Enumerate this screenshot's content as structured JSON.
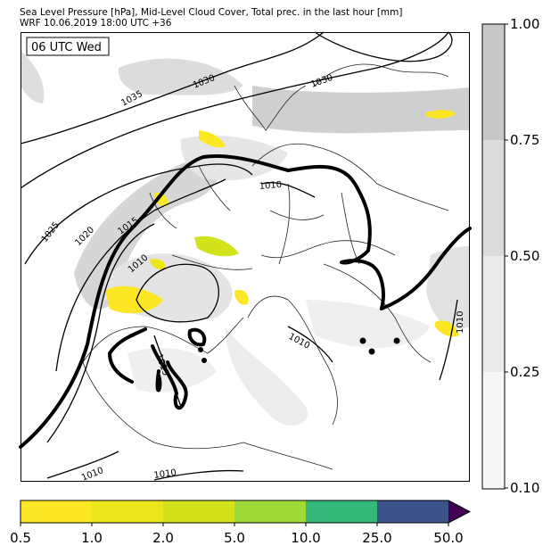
{
  "header": {
    "line1": "Sea Level Pressure [hPa], Mid-Level Cloud Cover, Total prec. in the last hour [mm]",
    "line2": "WRF 10.06.2019 18:00 UTC +36"
  },
  "map": {
    "valid_time": "06 UTC Wed",
    "isobar_labels": [
      "1035",
      "1030",
      "1030",
      "1025",
      "1020",
      "1015",
      "1010",
      "1010",
      "1015",
      "1010",
      "1010",
      "1010",
      "1010"
    ]
  },
  "cloud_colorbar": {
    "ticks": [
      "1.00",
      "0.75",
      "0.50",
      "0.25",
      "0.10"
    ],
    "colors": [
      "#c8c8c8",
      "#dcdcdc",
      "#ebebeb",
      "#f7f7f7"
    ]
  },
  "precip_colorbar": {
    "ticks": [
      "0.5",
      "1.0",
      "2.0",
      "5.0",
      "10.0",
      "25.0",
      "50.0"
    ],
    "colors": [
      "#fde725",
      "#ece51b",
      "#d2e21b",
      "#a0da39",
      "#35b779",
      "#3b528b",
      "#440154"
    ]
  }
}
